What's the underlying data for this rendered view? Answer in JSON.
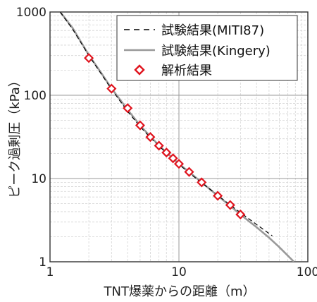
{
  "chart_data": {
    "type": "line",
    "xscale": "log",
    "yscale": "log",
    "xlim": [
      1,
      100
    ],
    "ylim": [
      1,
      1000
    ],
    "grid": true,
    "legend_position": "top-right",
    "xlabel": "TNT爆薬からの距離（m）",
    "ylabel": "ピーク過剰圧（kPa）",
    "xticks": [
      {
        "value": 1,
        "label": "1"
      },
      {
        "value": 10,
        "label": "10"
      },
      {
        "value": 100,
        "label": "100"
      }
    ],
    "yticks": [
      {
        "value": 1,
        "label": "1"
      },
      {
        "value": 10,
        "label": "10"
      },
      {
        "value": 100,
        "label": "100"
      },
      {
        "value": 1000,
        "label": "1000"
      }
    ],
    "series": [
      {
        "name": "試験結果(MITI87)",
        "style": "dashed",
        "color": "#000000",
        "x": [
          1.2,
          1.5,
          2,
          2.5,
          3,
          4,
          5,
          6,
          7,
          8,
          9,
          10,
          12,
          15,
          20,
          25,
          30,
          40,
          53
        ],
        "y": [
          1000,
          620,
          300,
          180,
          118,
          64,
          42,
          31,
          24.5,
          20.3,
          17.2,
          14.8,
          11.7,
          8.9,
          6.3,
          4.8,
          3.9,
          2.8,
          2.05
        ]
      },
      {
        "name": "試験結果(Kingery)",
        "style": "solid",
        "color": "#999999",
        "x": [
          1.2,
          1.5,
          2,
          2.5,
          3,
          4,
          5,
          6,
          7,
          8,
          9,
          10,
          12,
          15,
          20,
          25,
          30,
          40,
          50,
          60,
          78
        ],
        "y": [
          1000,
          640,
          305,
          185,
          121,
          67,
          43.5,
          32,
          25,
          20.5,
          17.5,
          15,
          12,
          9,
          6.2,
          4.7,
          3.7,
          2.6,
          1.95,
          1.5,
          1.0
        ]
      },
      {
        "name": "解析結果",
        "style": "marker",
        "color": "#e0141e",
        "x": [
          2,
          3,
          4,
          5,
          6,
          7,
          8,
          9,
          10,
          12,
          15,
          20,
          25,
          30
        ],
        "y": [
          280,
          120,
          70,
          43.5,
          31.5,
          24.8,
          20.5,
          17.5,
          15,
          12,
          9,
          6.2,
          4.8,
          3.7
        ]
      }
    ]
  }
}
